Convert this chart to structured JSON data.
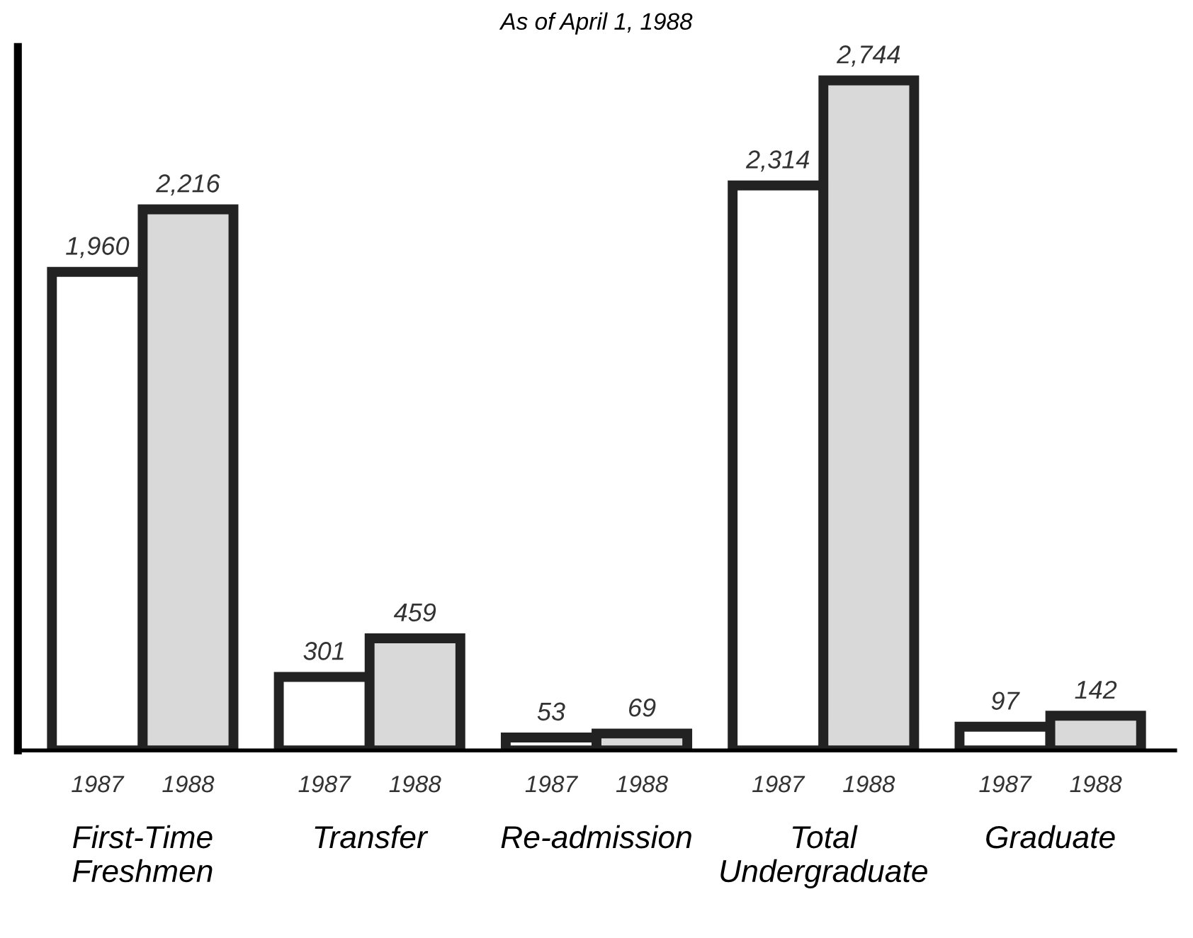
{
  "chart_data": {
    "type": "bar",
    "subtitle": "As of April 1, 1988",
    "categories": [
      "First-Time\nFreshmen",
      "Transfer",
      "Re-admission",
      "Total\nUndergraduate",
      "Graduate"
    ],
    "series": [
      {
        "name": "1987",
        "color": "#ffffff",
        "values": [
          1960,
          301,
          53,
          2314,
          97
        ],
        "value_labels": [
          "1,960",
          "301",
          "53",
          "2,314",
          "97"
        ]
      },
      {
        "name": "1988",
        "color": "#d9d9d9",
        "values": [
          2216,
          459,
          69,
          2744,
          142
        ],
        "value_labels": [
          "2,216",
          "459",
          "69",
          "2,744",
          "142"
        ]
      }
    ],
    "grid": false,
    "legend": false
  }
}
